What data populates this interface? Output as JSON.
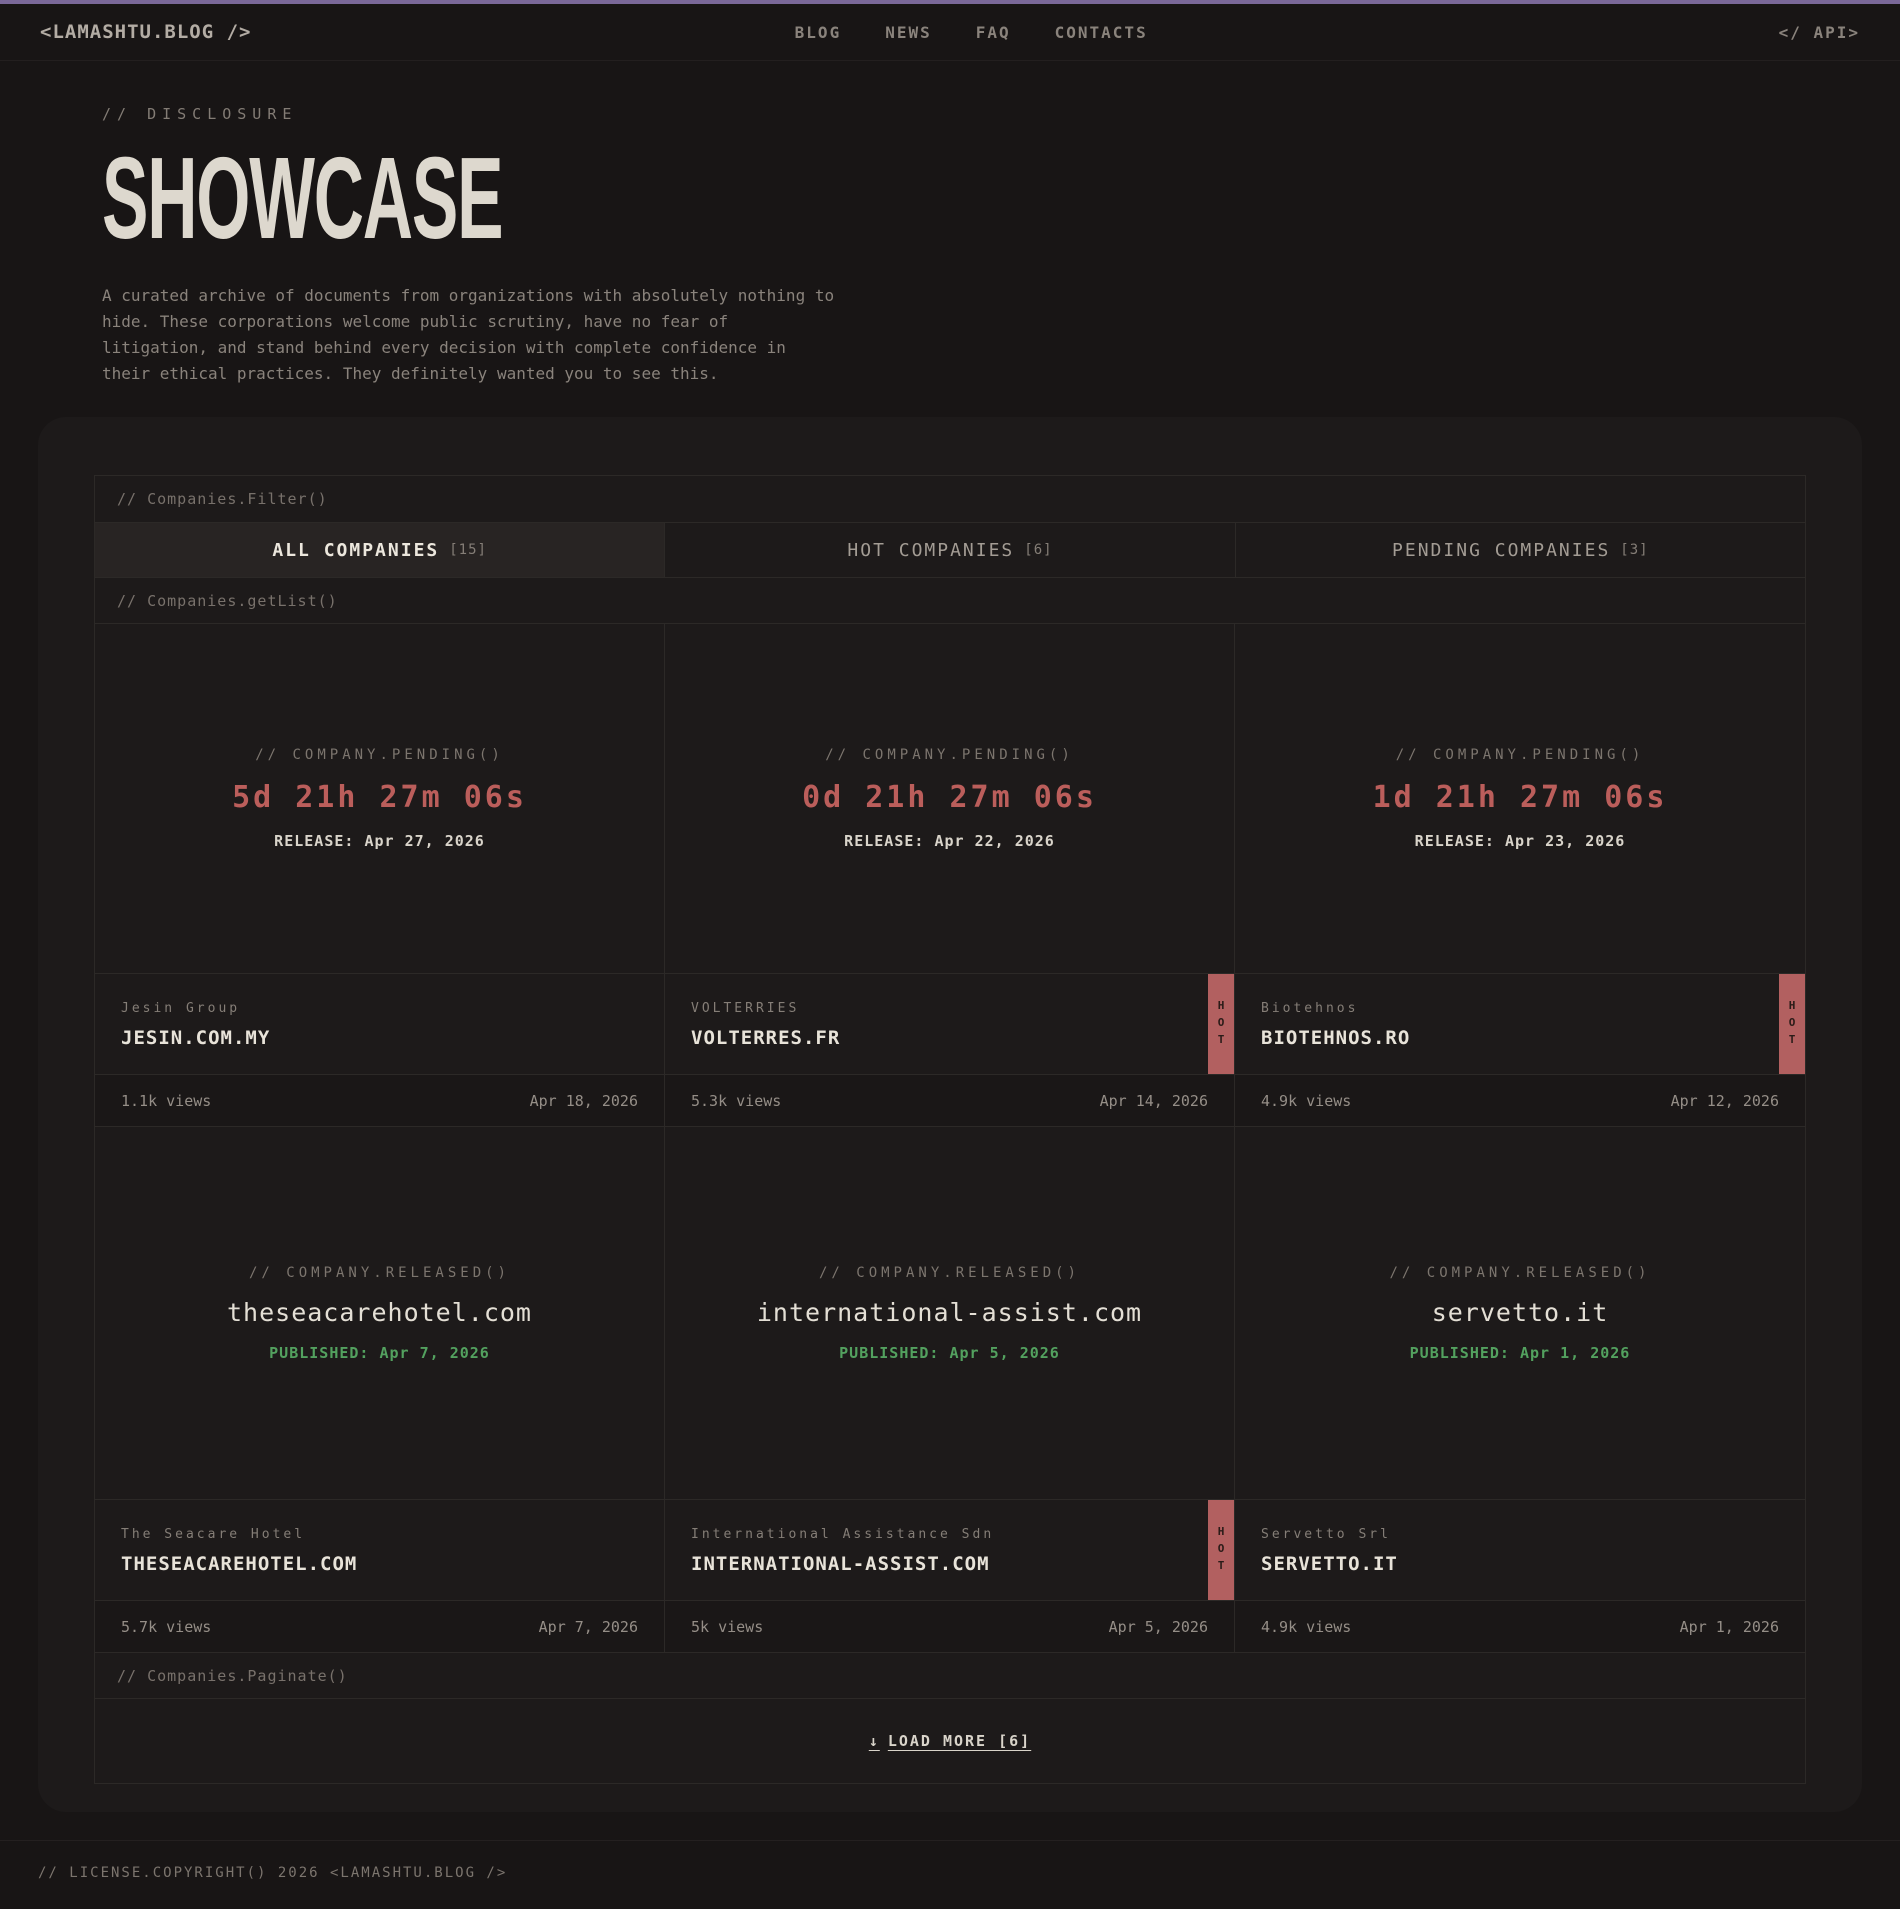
{
  "nav": {
    "logo": "<LAMASHTU.BLOG />",
    "links": {
      "blog": "BLOG",
      "news": "NEWS",
      "faq": "FAQ",
      "contacts": "CONTACTS"
    },
    "api_label": "</ API>"
  },
  "hero": {
    "kicker": "// DISCLOSURE",
    "title": "SHOWCASE",
    "lines": [
      "A curated archive of documents from organizations with absolutely nothing to",
      "hide. These corporations welcome public scrutiny, have no fear of",
      "litigation, and stand behind every decision with complete confidence in",
      "their ethical practices. They definitely wanted you to see this."
    ]
  },
  "filter": {
    "label": "// Companies.Filter()",
    "tabs": [
      {
        "label": "ALL COMPANIES",
        "count": "[15]",
        "active": true
      },
      {
        "label": "HOT COMPANIES",
        "count": "[6]",
        "active": false
      },
      {
        "label": "PENDING COMPANIES",
        "count": "[3]",
        "active": false
      }
    ]
  },
  "list": {
    "label": "// Companies.getList()",
    "cards": [
      {
        "status": "pending",
        "status_label": "// COMPANY.PENDING()",
        "countdown": "5d 21h 27m 06s",
        "release": "RELEASE: Apr 27, 2026",
        "company": "Jesin Group",
        "domain": "JESIN.COM.MY",
        "views": "1.1k views",
        "date": "Apr 18, 2026",
        "hot": false
      },
      {
        "status": "pending",
        "status_label": "// COMPANY.PENDING()",
        "countdown": "0d 21h 27m 06s",
        "release": "RELEASE: Apr 22, 2026",
        "company": "VOLTERRIES",
        "domain": "VOLTERRES.FR",
        "views": "5.3k views",
        "date": "Apr 14, 2026",
        "hot": true
      },
      {
        "status": "pending",
        "status_label": "// COMPANY.PENDING()",
        "countdown": "1d 21h 27m 06s",
        "release": "RELEASE: Apr 23, 2026",
        "company": "Biotehnos",
        "domain": "BIOTEHNOS.RO",
        "views": "4.9k views",
        "date": "Apr 12, 2026",
        "hot": true
      },
      {
        "status": "released",
        "status_label": "// COMPANY.RELEASED()",
        "domain_display": "theseacarehotel.com",
        "published": "PUBLISHED: Apr 7, 2026",
        "company": "The Seacare Hotel",
        "domain": "THESEACAREHOTEL.COM",
        "views": "5.7k views",
        "date": "Apr 7, 2026",
        "hot": false
      },
      {
        "status": "released",
        "status_label": "// COMPANY.RELEASED()",
        "domain_display": "international-assist.com",
        "published": "PUBLISHED: Apr 5, 2026",
        "company": "International Assistance Sdn",
        "domain": "INTERNATIONAL-ASSIST.COM",
        "views": "5k views",
        "date": "Apr 5, 2026",
        "hot": true
      },
      {
        "status": "released",
        "status_label": "// COMPANY.RELEASED()",
        "domain_display": "servetto.it",
        "published": "PUBLISHED: Apr 1, 2026",
        "company": "Servetto Srl",
        "domain": "SERVETTO.IT",
        "views": "4.9k views",
        "date": "Apr 1, 2026",
        "hot": false
      }
    ]
  },
  "labels": {
    "hot": "HOT"
  },
  "pagination": {
    "label": "// Companies.Paginate()",
    "arrow": "↓",
    "load_more": "LOAD MORE [6]"
  },
  "footer": {
    "text": "// LICENSE.COPYRIGHT() 2026 <LAMASHTU.BLOG />"
  },
  "colors": {
    "accent_purple": "#7a6898",
    "countdown_red": "#bb5e5b",
    "published_green": "#53a15f",
    "hot_badge": "#b26060",
    "page_bg": "#181515",
    "panel_bg": "#1d1a1a",
    "border": "#2c2927",
    "text_cream": "#e4dfd5",
    "text_gray": "#8a837c"
  }
}
